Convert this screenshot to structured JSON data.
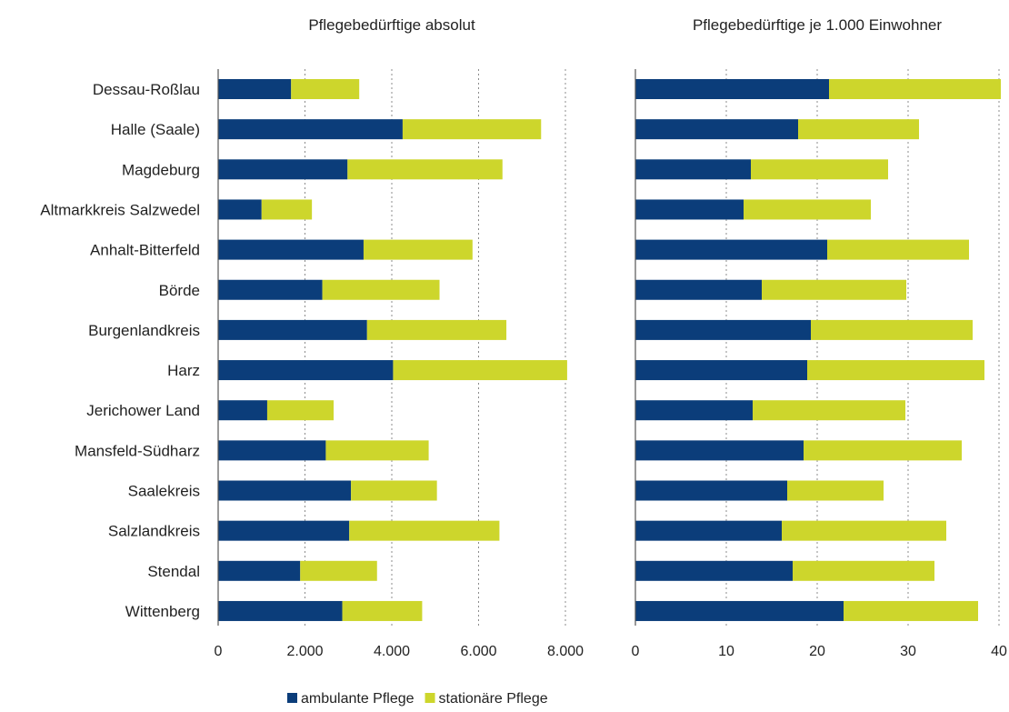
{
  "chart_data": {
    "type": "bar",
    "orientation": "horizontal",
    "stacked": true,
    "categories": [
      "Dessau-Roßlau",
      "Halle (Saale)",
      "Magdeburg",
      "Altmarkkreis Salzwedel",
      "Anhalt-Bitterfeld",
      "Börde",
      "Burgenlandkreis",
      "Harz",
      "Jerichower Land",
      "Mansfeld-Südharz",
      "Saalekreis",
      "Salzlandkreis",
      "Stendal",
      "Wittenberg"
    ],
    "legend": {
      "position": "bottom",
      "entries": [
        {
          "name": "ambulante Pflege",
          "color": "#0b3d7a"
        },
        {
          "name": "stationäre Pflege",
          "color": "#cdd62c"
        }
      ]
    },
    "panels": [
      {
        "title": "Pflegebedürftige absolut",
        "xlim": [
          0,
          8000
        ],
        "xticks": [
          0,
          2000,
          4000,
          6000,
          8000
        ],
        "xtick_labels": [
          "0",
          "2.000",
          "4.000",
          "6.000",
          "8.000"
        ],
        "grid": true,
        "series": [
          {
            "name": "ambulante Pflege",
            "values": [
              1680,
              4250,
              2980,
              1000,
              3350,
              2400,
              3430,
              4030,
              1130,
              2480,
              3060,
              3020,
              1890,
              2860
            ]
          },
          {
            "name": "stationäre Pflege",
            "values": [
              1570,
              3190,
              3570,
              1160,
              2510,
              2700,
              3210,
              4010,
              1530,
              2370,
              1980,
              3460,
              1770,
              1840
            ]
          }
        ]
      },
      {
        "title": "Pflegebedürftige je 1.000 Einwohner",
        "xlim": [
          0,
          40
        ],
        "xticks": [
          0,
          10,
          20,
          30,
          40
        ],
        "xtick_labels": [
          "0",
          "10",
          "20",
          "30",
          "40"
        ],
        "grid": true,
        "series": [
          {
            "name": "ambulante Pflege",
            "values": [
              21.3,
              17.9,
              12.7,
              11.9,
              21.1,
              13.9,
              19.3,
              18.9,
              12.9,
              18.5,
              16.7,
              16.1,
              17.3,
              22.9
            ]
          },
          {
            "name": "stationäre Pflege",
            "values": [
              18.9,
              13.3,
              15.1,
              14.0,
              15.6,
              15.9,
              17.8,
              19.5,
              16.8,
              17.4,
              10.6,
              18.1,
              15.6,
              14.8
            ]
          }
        ]
      }
    ]
  }
}
